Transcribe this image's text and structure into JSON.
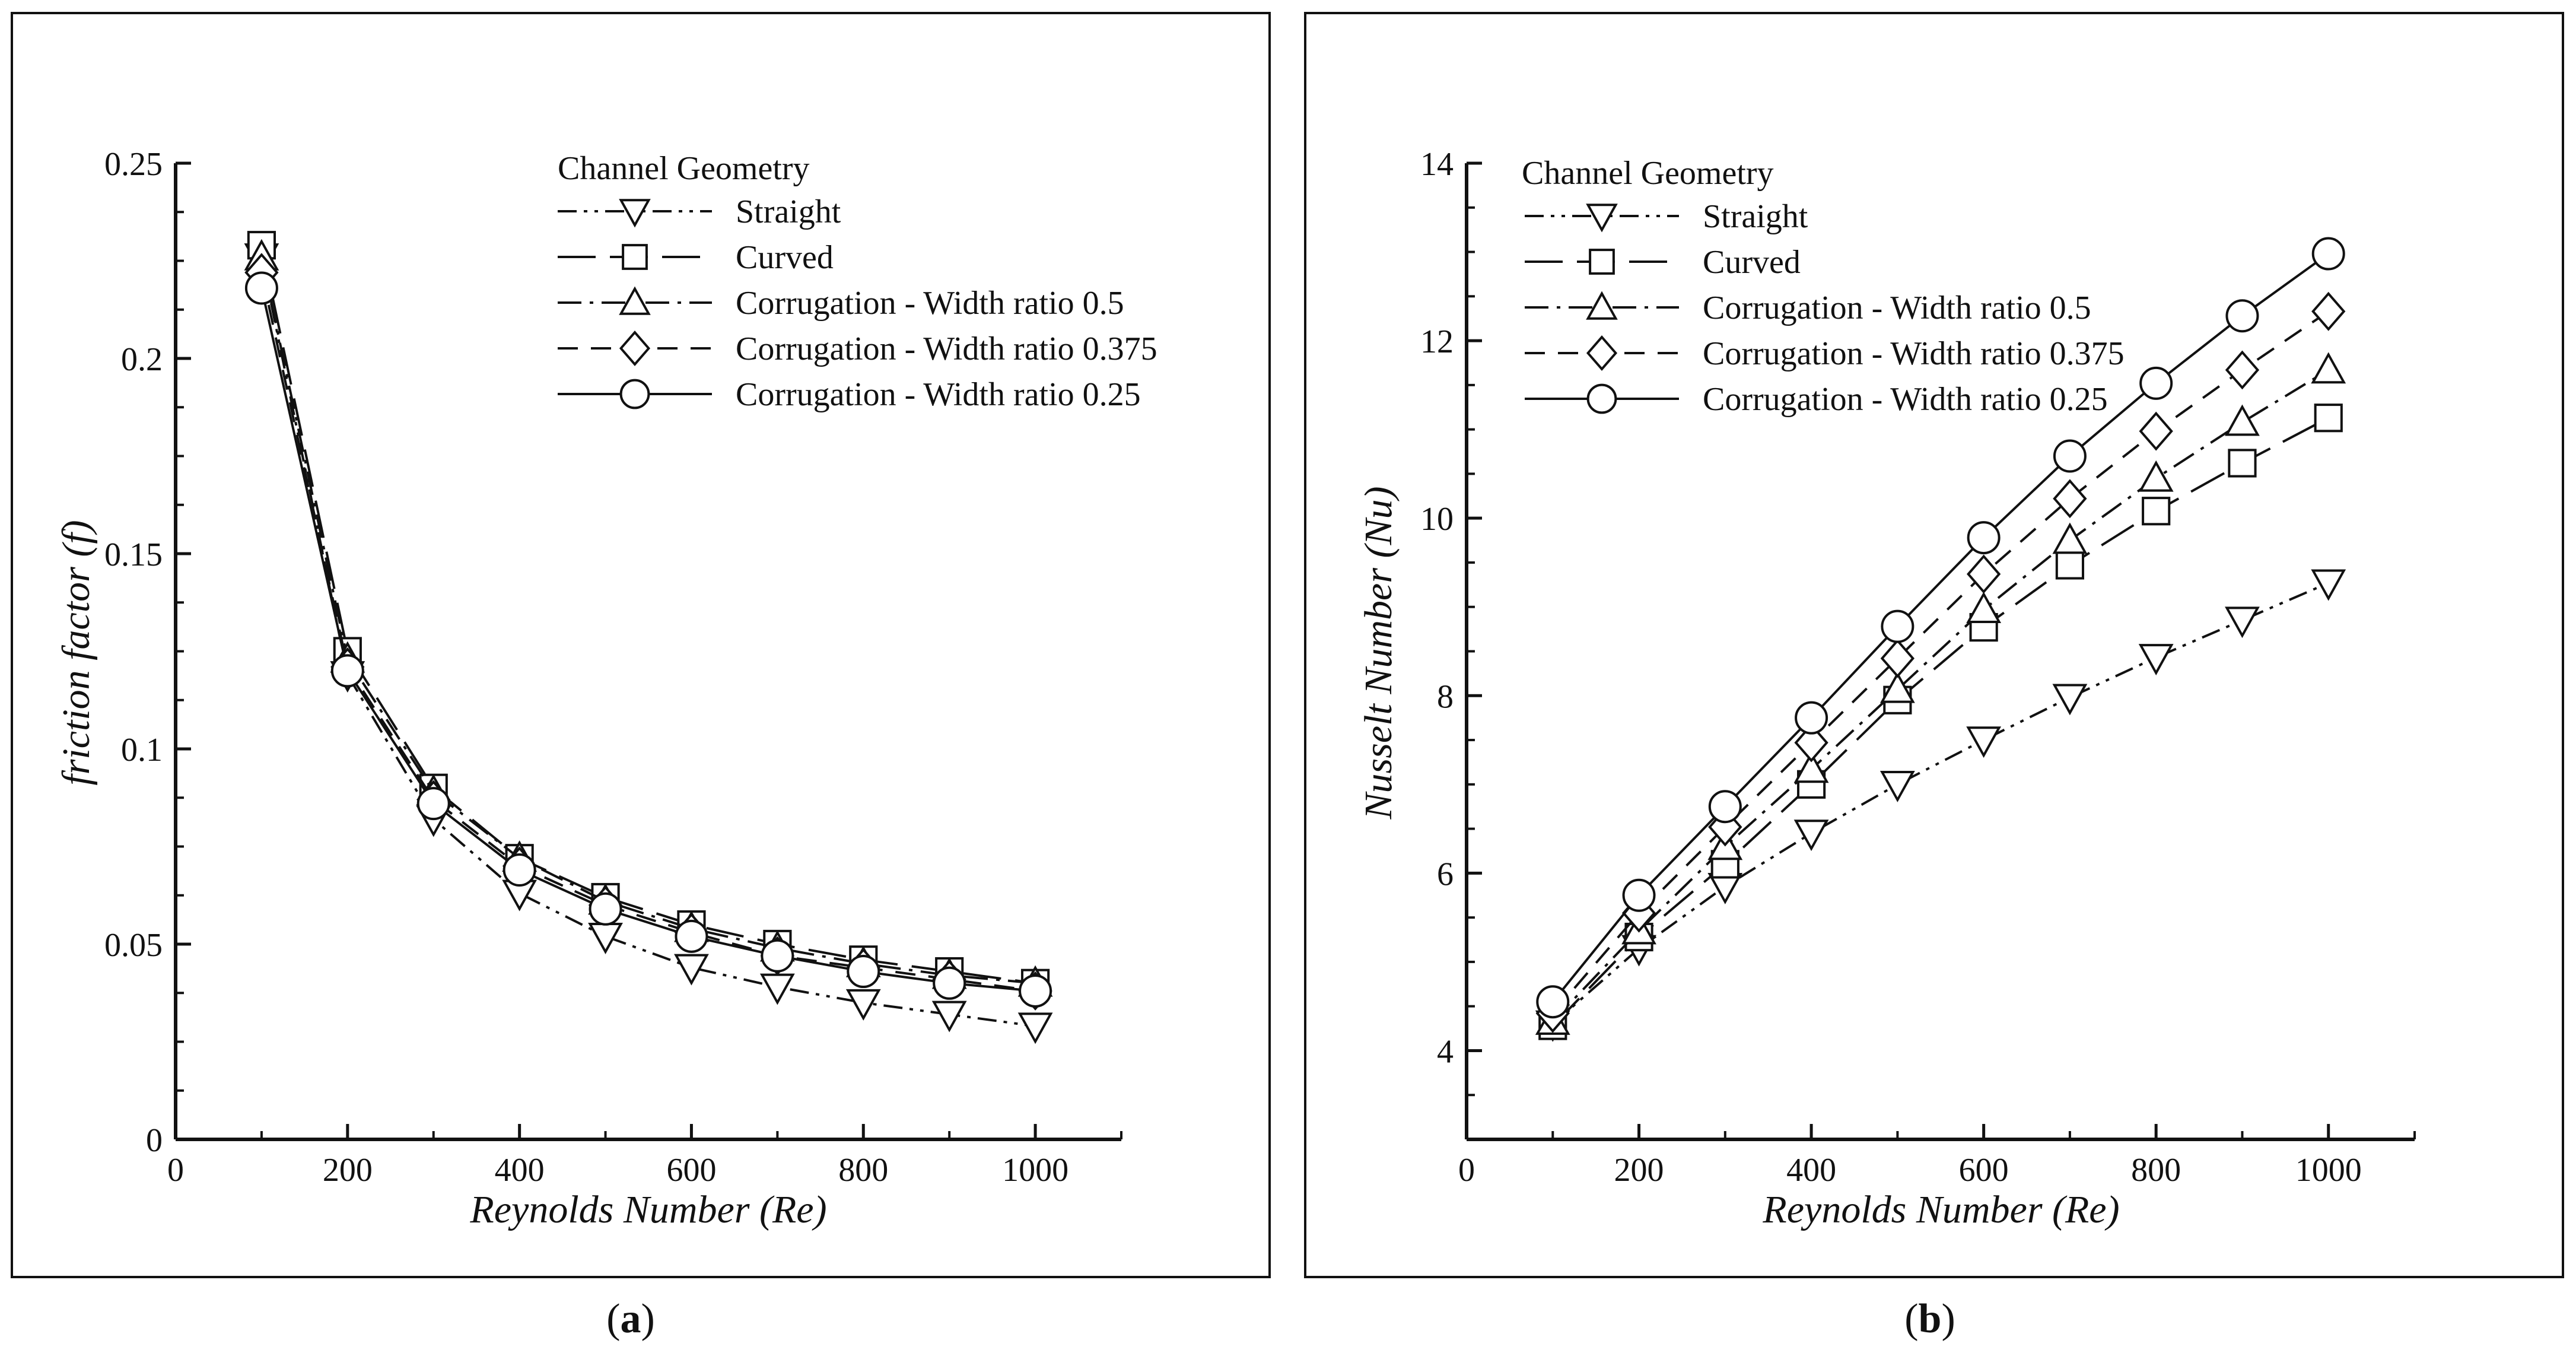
{
  "figure": {
    "background": "#ffffff",
    "ink": "#111111"
  },
  "chart_data": [
    {
      "type": "line",
      "panel": "a",
      "panel_label": {
        "open": "(",
        "letter": "a",
        "close": ")"
      },
      "xlabel": "Reynolds Number (Re)",
      "ylabel": "friction factor (f)",
      "xlim": [
        0,
        1100
      ],
      "ylim": [
        0,
        0.25
      ],
      "x_ticks": [
        0,
        200,
        400,
        600,
        800,
        1000
      ],
      "x_tick_labels": [
        "0",
        "200",
        "400",
        "600",
        "800",
        "1000"
      ],
      "y_ticks": [
        0,
        0.05,
        0.1,
        0.15,
        0.2,
        0.25
      ],
      "y_tick_labels": [
        "0",
        "0.05",
        "0.1",
        "0.15",
        "0.2",
        "0.25"
      ],
      "legend_title": "Channel Geometry",
      "legend_position": "top-right",
      "x": [
        100,
        200,
        300,
        400,
        500,
        600,
        700,
        800,
        900,
        1000
      ],
      "series": [
        {
          "name": "Straight",
          "marker": "triangle-down",
          "dash": "dash-dot-dot",
          "values": [
            0.226,
            0.119,
            0.082,
            0.063,
            0.052,
            0.044,
            0.039,
            0.035,
            0.032,
            0.029
          ]
        },
        {
          "name": "Curved",
          "marker": "square",
          "dash": "long-dash",
          "values": [
            0.229,
            0.125,
            0.09,
            0.072,
            0.062,
            0.055,
            0.05,
            0.046,
            0.043,
            0.04
          ]
        },
        {
          "name": "Corrugation - Width ratio 0.5",
          "marker": "triangle-up",
          "dash": "dash-dot",
          "values": [
            0.226,
            0.123,
            0.089,
            0.072,
            0.061,
            0.054,
            0.049,
            0.045,
            0.042,
            0.04
          ]
        },
        {
          "name": "Corrugation - Width ratio 0.375",
          "marker": "diamond",
          "dash": "dash",
          "values": [
            0.222,
            0.121,
            0.087,
            0.07,
            0.06,
            0.053,
            0.047,
            0.044,
            0.041,
            0.038
          ]
        },
        {
          "name": "Corrugation - Width ratio 0.25",
          "marker": "circle",
          "dash": "solid",
          "values": [
            0.218,
            0.12,
            0.086,
            0.069,
            0.059,
            0.052,
            0.047,
            0.043,
            0.04,
            0.038
          ]
        }
      ]
    },
    {
      "type": "line",
      "panel": "b",
      "panel_label": {
        "open": "(",
        "letter": "b",
        "close": ")"
      },
      "xlabel": "Reynolds Number (Re)",
      "ylabel": "Nusselt Number (Nu)",
      "xlim": [
        0,
        1100
      ],
      "ylim": [
        3,
        14
      ],
      "x_ticks": [
        0,
        200,
        400,
        600,
        800,
        1000
      ],
      "x_tick_labels": [
        "0",
        "200",
        "400",
        "600",
        "800",
        "1000"
      ],
      "y_ticks": [
        4,
        6,
        8,
        10,
        12,
        14
      ],
      "y_tick_labels": [
        "4",
        "6",
        "8",
        "10",
        "12",
        "14"
      ],
      "legend_title": "Channel Geometry",
      "legend_position": "top-left",
      "x": [
        100,
        200,
        300,
        400,
        500,
        600,
        700,
        800,
        900,
        1000
      ],
      "series": [
        {
          "name": "Straight",
          "marker": "triangle-down",
          "dash": "dash-dot-dot",
          "values": [
            4.3,
            5.15,
            5.85,
            6.45,
            7.0,
            7.5,
            7.98,
            8.43,
            8.85,
            9.27
          ]
        },
        {
          "name": "Curved",
          "marker": "square",
          "dash": "long-dash",
          "values": [
            4.28,
            5.28,
            6.1,
            7.0,
            7.95,
            8.77,
            9.47,
            10.08,
            10.62,
            11.13
          ]
        },
        {
          "name": "Corrugation - Width ratio 0.5",
          "marker": "triangle-up",
          "dash": "dash-dot",
          "values": [
            4.33,
            5.35,
            6.3,
            7.17,
            8.07,
            8.97,
            9.75,
            10.45,
            11.08,
            11.67
          ]
        },
        {
          "name": "Corrugation - Width ratio 0.375",
          "marker": "diamond",
          "dash": "dash",
          "values": [
            4.42,
            5.55,
            6.52,
            7.47,
            8.42,
            9.37,
            10.22,
            10.98,
            11.67,
            12.33
          ]
        },
        {
          "name": "Corrugation - Width ratio 0.25",
          "marker": "circle",
          "dash": "solid",
          "values": [
            4.55,
            5.75,
            6.75,
            7.75,
            8.78,
            9.78,
            10.7,
            11.52,
            12.28,
            12.98
          ]
        }
      ]
    }
  ]
}
